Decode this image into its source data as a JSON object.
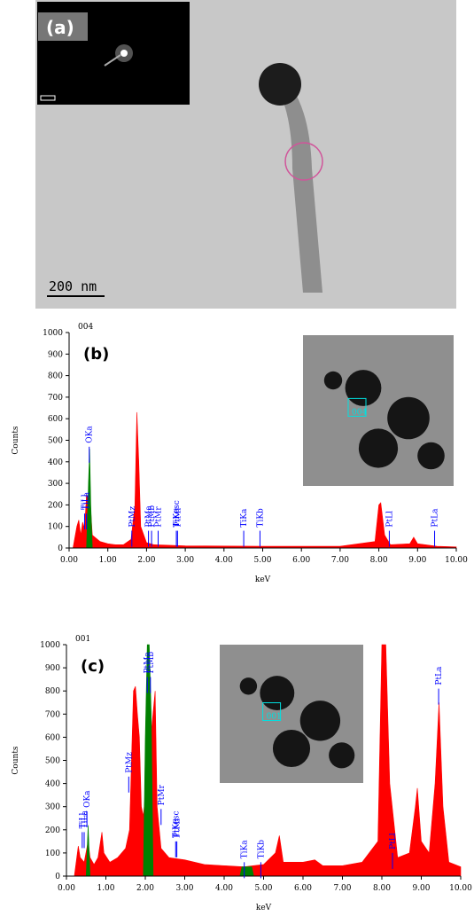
{
  "image_panel": {
    "panel_label": "(a)",
    "scale_label": "200 nm"
  },
  "chart_data": [
    {
      "type": "area",
      "title": "004",
      "panel_label": "(b)",
      "inset_label": "004",
      "xlabel": "keV",
      "ylabel": "Counts",
      "xlim": [
        0,
        10
      ],
      "ylim": [
        0,
        1000
      ],
      "xticks": [
        {
          "value": 0,
          "label": "0.00"
        },
        {
          "value": 1,
          "label": "1.00"
        },
        {
          "value": 2,
          "label": "2.00"
        },
        {
          "value": 3,
          "label": "3.00"
        },
        {
          "value": 4,
          "label": "4.00"
        },
        {
          "value": 5,
          "label": "5.00"
        },
        {
          "value": 6,
          "label": "6.00"
        },
        {
          "value": 7,
          "label": "7.00"
        },
        {
          "value": 8,
          "label": "8.00"
        },
        {
          "value": 9,
          "label": "9.00"
        },
        {
          "value": 10,
          "label": "10.00"
        }
      ],
      "yticks": [
        0,
        100,
        200,
        300,
        400,
        500,
        600,
        700,
        800,
        900,
        1000
      ],
      "series": [
        {
          "color": "#ff0000",
          "x": [
            0.1,
            0.2,
            0.25,
            0.3,
            0.35,
            0.4,
            0.45,
            0.55,
            0.6,
            0.8,
            1.0,
            1.2,
            1.4,
            1.6,
            1.7,
            1.75,
            1.8,
            1.85,
            2.0,
            2.2,
            3.0,
            5.0,
            7.0,
            7.9,
            8.0,
            8.05,
            8.15,
            8.3,
            8.8,
            8.9,
            9.0,
            9.5,
            10.0
          ],
          "values": [
            0,
            100,
            130,
            60,
            120,
            90,
            250,
            200,
            60,
            30,
            20,
            15,
            15,
            40,
            200,
            630,
            400,
            100,
            25,
            15,
            10,
            8,
            8,
            30,
            200,
            210,
            60,
            15,
            20,
            50,
            20,
            8,
            5
          ]
        },
        {
          "color": "#008000",
          "x": [
            0.45,
            0.5,
            0.53,
            0.56,
            0.6
          ],
          "values": [
            0,
            300,
            460,
            200,
            0
          ]
        }
      ],
      "annotations": [
        {
          "label": "TiLl",
          "x": 0.4,
          "y": 160
        },
        {
          "label": "TiLa",
          "x": 0.45,
          "y": 160
        },
        {
          "label": "OKa",
          "x": 0.52,
          "y": 470
        },
        {
          "label": "PtMz",
          "x": 1.62,
          "y": 80
        },
        {
          "label": "PtMa",
          "x": 2.05,
          "y": 80
        },
        {
          "label": "PtMb",
          "x": 2.13,
          "y": 80
        },
        {
          "label": "PtMr",
          "x": 2.3,
          "y": 80
        },
        {
          "label": "TiKesc",
          "x": 2.77,
          "y": 80
        },
        {
          "label": "PtMl",
          "x": 2.8,
          "y": 80
        },
        {
          "label": "TiKa",
          "x": 4.51,
          "y": 80
        },
        {
          "label": "TiKb",
          "x": 4.93,
          "y": 80
        },
        {
          "label": "PtLl",
          "x": 8.27,
          "y": 80
        },
        {
          "label": "PtLa",
          "x": 9.44,
          "y": 80
        }
      ]
    },
    {
      "type": "area",
      "title": "001",
      "panel_label": "(c)",
      "inset_label": "001",
      "xlabel": "keV",
      "ylabel": "Counts",
      "xlim": [
        0,
        10
      ],
      "ylim": [
        0,
        1000
      ],
      "xticks": [
        {
          "value": 0,
          "label": "0.00"
        },
        {
          "value": 1,
          "label": "1.00"
        },
        {
          "value": 2,
          "label": "2.00"
        },
        {
          "value": 3,
          "label": "3.00"
        },
        {
          "value": 4,
          "label": "4.00"
        },
        {
          "value": 5,
          "label": "5.00"
        },
        {
          "value": 6,
          "label": "6.00"
        },
        {
          "value": 7,
          "label": "7.00"
        },
        {
          "value": 8,
          "label": "8.00"
        },
        {
          "value": 9,
          "label": "9.00"
        },
        {
          "value": 10,
          "label": "10.00"
        }
      ],
      "yticks": [
        0,
        100,
        200,
        300,
        400,
        500,
        600,
        700,
        800,
        900,
        1000
      ],
      "series": [
        {
          "color": "#ff0000",
          "x": [
            0.2,
            0.3,
            0.35,
            0.45,
            0.55,
            0.6,
            0.7,
            0.8,
            0.9,
            0.95,
            1.1,
            1.3,
            1.5,
            1.6,
            1.7,
            1.75,
            1.8,
            1.85,
            1.9,
            1.95,
            2.25,
            2.3,
            2.4,
            2.6,
            3.0,
            3.5,
            4.0,
            4.5,
            5.0,
            5.3,
            5.4,
            5.5,
            6.0,
            6.3,
            6.5,
            7.0,
            7.5,
            7.9,
            8.0,
            8.05,
            8.1,
            8.2,
            8.4,
            8.7,
            8.85,
            8.9,
            9.0,
            9.2,
            9.35,
            9.45,
            9.55,
            9.7,
            10.0
          ],
          "values": [
            0,
            130,
            80,
            60,
            150,
            80,
            50,
            80,
            190,
            100,
            60,
            80,
            120,
            200,
            800,
            820,
            700,
            600,
            300,
            260,
            800,
            300,
            120,
            80,
            70,
            50,
            45,
            40,
            50,
            100,
            175,
            60,
            60,
            70,
            45,
            45,
            60,
            150,
            1000,
            1000,
            1000,
            400,
            80,
            100,
            300,
            380,
            150,
            100,
            400,
            750,
            300,
            60,
            40
          ]
        },
        {
          "color": "#008000",
          "x": [
            0.5,
            0.55,
            0.6,
            1.95,
            2.0,
            2.05,
            2.1,
            2.15,
            2.2,
            4.4,
            4.45,
            4.7,
            4.75
          ],
          "values": [
            0,
            220,
            0,
            0,
            600,
            1000,
            1000,
            700,
            0,
            0,
            40,
            40,
            0
          ]
        }
      ],
      "annotations": [
        {
          "label": "TiLl",
          "x": 0.4,
          "y": 190
        },
        {
          "label": "TiLa",
          "x": 0.45,
          "y": 190
        },
        {
          "label": "OKa",
          "x": 0.52,
          "y": 280
        },
        {
          "label": "PtMz",
          "x": 1.58,
          "y": 430
        },
        {
          "label": "PtMa",
          "x": 2.05,
          "y": 860
        },
        {
          "label": "PtMb",
          "x": 2.13,
          "y": 860
        },
        {
          "label": "PtMr",
          "x": 2.4,
          "y": 290
        },
        {
          "label": "TiKesc",
          "x": 2.77,
          "y": 150
        },
        {
          "label": "PtMl",
          "x": 2.8,
          "y": 150
        },
        {
          "label": "TiKa",
          "x": 4.51,
          "y": 60
        },
        {
          "label": "TiKb",
          "x": 4.93,
          "y": 60
        },
        {
          "label": "PtLl",
          "x": 8.27,
          "y": 100
        },
        {
          "label": "PtLa",
          "x": 9.44,
          "y": 810
        }
      ]
    }
  ]
}
